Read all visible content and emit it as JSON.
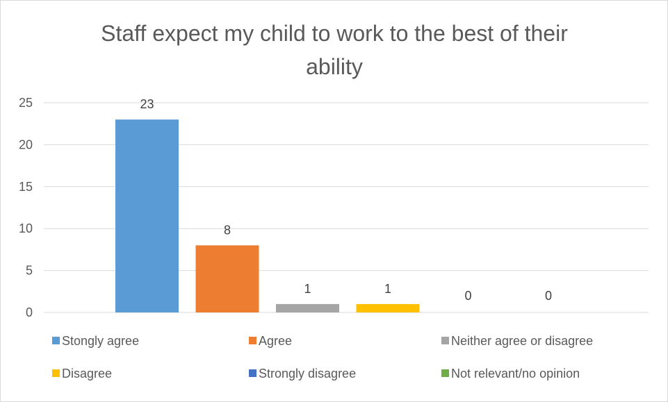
{
  "chart_data": {
    "type": "bar",
    "title_lines": [
      "Staff expect my child to work to the best of their",
      "ability"
    ],
    "categories": [
      "Stongly agree",
      "Agree",
      "Neither agree or disagree",
      "Disagree",
      "Strongly disagree",
      "Not relevant/no opinion"
    ],
    "values": [
      23,
      8,
      1,
      1,
      0,
      0
    ],
    "colors": [
      "#5B9BD5",
      "#ED7D31",
      "#A5A5A5",
      "#FFC000",
      "#4472C4",
      "#70AD47"
    ],
    "ylim": [
      0,
      25
    ],
    "yticks": [
      0,
      5,
      10,
      15,
      20,
      25
    ],
    "xlabel": "",
    "ylabel": "",
    "grid": true,
    "legend_position": "bottom",
    "data_labels": true
  }
}
